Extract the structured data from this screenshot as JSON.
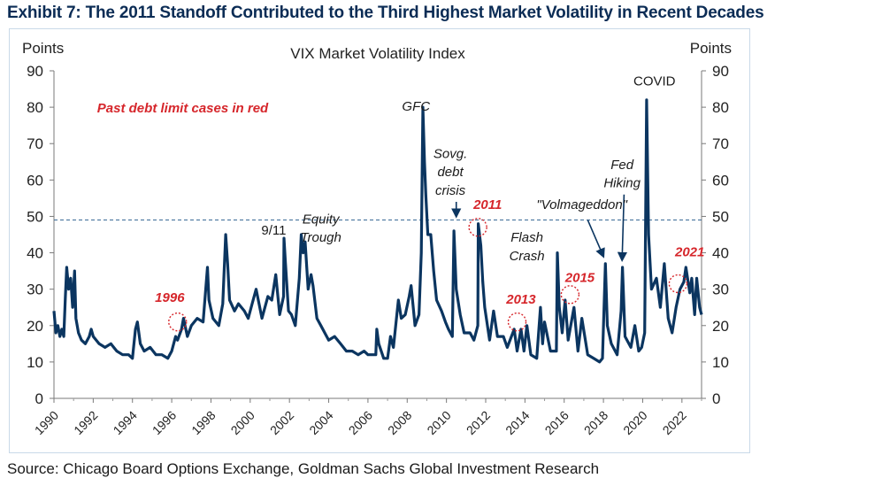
{
  "page": {
    "exhibit_title": "Exhibit 7: The 2011 Standoff Contributed to the Third Highest Market Volatility in Recent Decades",
    "source": "Source: Chicago Board Options Exchange, Goldman Sachs Global Investment Research"
  },
  "chart_data": {
    "type": "line",
    "title": "VIX  Market  Volatility Index",
    "ylabel_left": "Points",
    "ylabel_right": "Points",
    "ylim": [
      0,
      90
    ],
    "yticks": [
      0,
      10,
      20,
      30,
      40,
      50,
      60,
      70,
      80,
      90
    ],
    "xlim": [
      1990,
      2023
    ],
    "xticks": [
      "1990",
      "1992",
      "1994",
      "1996",
      "1998",
      "2000",
      "2002",
      "2004",
      "2006",
      "2008",
      "2010",
      "2012",
      "2014",
      "2016",
      "2018",
      "2020",
      "2022"
    ],
    "reference_line": {
      "y": 49,
      "style": "dashed"
    },
    "legend_note": "Past debt limit cases in red",
    "colors": {
      "series": "#0b3560",
      "highlight": "#d6262b",
      "reference": "#3a6a96",
      "axis_text": "#222222"
    },
    "series": [
      {
        "points": [
          [
            1990.0,
            24
          ],
          [
            1990.1,
            18
          ],
          [
            1990.2,
            20
          ],
          [
            1990.3,
            17
          ],
          [
            1990.4,
            19
          ],
          [
            1990.5,
            17
          ],
          [
            1990.58,
            28
          ],
          [
            1990.65,
            36
          ],
          [
            1990.75,
            30
          ],
          [
            1990.85,
            33
          ],
          [
            1990.95,
            25
          ],
          [
            1991.05,
            35
          ],
          [
            1991.12,
            22
          ],
          [
            1991.25,
            18
          ],
          [
            1991.4,
            16
          ],
          [
            1991.6,
            15
          ],
          [
            1991.8,
            17
          ],
          [
            1991.9,
            19
          ],
          [
            1992.0,
            17
          ],
          [
            1992.3,
            15
          ],
          [
            1992.6,
            14
          ],
          [
            1992.9,
            15
          ],
          [
            1993.2,
            13
          ],
          [
            1993.5,
            12
          ],
          [
            1993.8,
            12
          ],
          [
            1994.0,
            11
          ],
          [
            1994.15,
            19
          ],
          [
            1994.25,
            21
          ],
          [
            1994.4,
            15
          ],
          [
            1994.6,
            13
          ],
          [
            1994.9,
            14
          ],
          [
            1995.2,
            12
          ],
          [
            1995.5,
            12
          ],
          [
            1995.8,
            11
          ],
          [
            1996.0,
            13
          ],
          [
            1996.2,
            17
          ],
          [
            1996.3,
            16
          ],
          [
            1996.5,
            19
          ],
          [
            1996.6,
            22
          ],
          [
            1996.8,
            17
          ],
          [
            1997.0,
            20
          ],
          [
            1997.3,
            22
          ],
          [
            1997.6,
            21
          ],
          [
            1997.82,
            36
          ],
          [
            1997.9,
            27
          ],
          [
            1998.1,
            22
          ],
          [
            1998.4,
            20
          ],
          [
            1998.6,
            26
          ],
          [
            1998.75,
            45
          ],
          [
            1998.85,
            37
          ],
          [
            1998.95,
            27
          ],
          [
            1999.2,
            24
          ],
          [
            1999.4,
            26
          ],
          [
            1999.7,
            24
          ],
          [
            1999.9,
            22
          ],
          [
            2000.1,
            26
          ],
          [
            2000.3,
            30
          ],
          [
            2000.6,
            22
          ],
          [
            2000.9,
            28
          ],
          [
            2001.1,
            27
          ],
          [
            2001.3,
            34
          ],
          [
            2001.5,
            23
          ],
          [
            2001.7,
            28
          ],
          [
            2001.72,
            44
          ],
          [
            2001.8,
            37
          ],
          [
            2001.95,
            24
          ],
          [
            2002.1,
            23
          ],
          [
            2002.3,
            20
          ],
          [
            2002.5,
            33
          ],
          [
            2002.6,
            45
          ],
          [
            2002.7,
            40
          ],
          [
            2002.8,
            43
          ],
          [
            2002.95,
            30
          ],
          [
            2003.1,
            34
          ],
          [
            2003.2,
            31
          ],
          [
            2003.4,
            22
          ],
          [
            2003.6,
            20
          ],
          [
            2003.9,
            17
          ],
          [
            2004.0,
            16
          ],
          [
            2004.3,
            17
          ],
          [
            2004.6,
            15
          ],
          [
            2004.9,
            13
          ],
          [
            2005.2,
            13
          ],
          [
            2005.5,
            12
          ],
          [
            2005.8,
            13
          ],
          [
            2006.0,
            12
          ],
          [
            2006.4,
            12
          ],
          [
            2006.45,
            19
          ],
          [
            2006.55,
            15
          ],
          [
            2006.8,
            11
          ],
          [
            2007.0,
            11
          ],
          [
            2007.15,
            17
          ],
          [
            2007.3,
            14
          ],
          [
            2007.55,
            27
          ],
          [
            2007.7,
            22
          ],
          [
            2007.9,
            23
          ],
          [
            2008.1,
            28
          ],
          [
            2008.2,
            31
          ],
          [
            2008.4,
            20
          ],
          [
            2008.6,
            23
          ],
          [
            2008.72,
            40
          ],
          [
            2008.8,
            80
          ],
          [
            2008.88,
            65
          ],
          [
            2008.95,
            56
          ],
          [
            2009.05,
            45
          ],
          [
            2009.2,
            45
          ],
          [
            2009.35,
            35
          ],
          [
            2009.5,
            27
          ],
          [
            2009.75,
            24
          ],
          [
            2009.95,
            21
          ],
          [
            2010.1,
            19
          ],
          [
            2010.3,
            17
          ],
          [
            2010.38,
            46
          ],
          [
            2010.5,
            30
          ],
          [
            2010.7,
            23
          ],
          [
            2010.9,
            18
          ],
          [
            2011.2,
            18
          ],
          [
            2011.4,
            16
          ],
          [
            2011.6,
            20
          ],
          [
            2011.62,
            48
          ],
          [
            2011.75,
            42
          ],
          [
            2011.85,
            32
          ],
          [
            2011.95,
            25
          ],
          [
            2012.2,
            16
          ],
          [
            2012.4,
            24
          ],
          [
            2012.6,
            17
          ],
          [
            2012.9,
            17
          ],
          [
            2013.1,
            14
          ],
          [
            2013.45,
            19
          ],
          [
            2013.6,
            13
          ],
          [
            2013.8,
            19
          ],
          [
            2013.95,
            13
          ],
          [
            2014.1,
            20
          ],
          [
            2014.3,
            12
          ],
          [
            2014.6,
            11
          ],
          [
            2014.79,
            25
          ],
          [
            2014.9,
            15
          ],
          [
            2015.0,
            21
          ],
          [
            2015.3,
            13
          ],
          [
            2015.6,
            13
          ],
          [
            2015.65,
            40
          ],
          [
            2015.75,
            25
          ],
          [
            2015.9,
            18
          ],
          [
            2016.05,
            27
          ],
          [
            2016.2,
            16
          ],
          [
            2016.5,
            25
          ],
          [
            2016.7,
            13
          ],
          [
            2016.9,
            22
          ],
          [
            2017.2,
            12
          ],
          [
            2017.5,
            11
          ],
          [
            2017.8,
            10
          ],
          [
            2017.95,
            11
          ],
          [
            2018.1,
            37
          ],
          [
            2018.2,
            20
          ],
          [
            2018.4,
            15
          ],
          [
            2018.7,
            12
          ],
          [
            2018.9,
            24
          ],
          [
            2018.97,
            36
          ],
          [
            2019.1,
            17
          ],
          [
            2019.4,
            14
          ],
          [
            2019.6,
            20
          ],
          [
            2019.8,
            13
          ],
          [
            2019.95,
            14
          ],
          [
            2020.1,
            18
          ],
          [
            2020.2,
            82
          ],
          [
            2020.3,
            45
          ],
          [
            2020.45,
            30
          ],
          [
            2020.7,
            33
          ],
          [
            2020.9,
            25
          ],
          [
            2021.1,
            37
          ],
          [
            2021.3,
            22
          ],
          [
            2021.5,
            18
          ],
          [
            2021.7,
            25
          ],
          [
            2021.9,
            30
          ],
          [
            2022.1,
            32
          ],
          [
            2022.2,
            36
          ],
          [
            2022.4,
            29
          ],
          [
            2022.5,
            33
          ],
          [
            2022.65,
            23
          ],
          [
            2022.75,
            33
          ],
          [
            2022.9,
            25
          ],
          [
            2023.0,
            23
          ]
        ]
      }
    ],
    "annotations": [
      {
        "text": "GFC",
        "x": 2008.45,
        "y": 79,
        "color": "dark",
        "italic": true
      },
      {
        "text": "9/11",
        "x": 2001.2,
        "y": 45,
        "color": "dark",
        "italic": false
      },
      {
        "text": "Equity",
        "x": 2003.6,
        "y": 48,
        "color": "dark",
        "italic": true
      },
      {
        "text": "Trough",
        "x": 2003.6,
        "y": 43,
        "color": "dark",
        "italic": true
      },
      {
        "text": "Sovg.",
        "x": 2010.2,
        "y": 66,
        "color": "dark",
        "italic": true
      },
      {
        "text": "debt",
        "x": 2010.2,
        "y": 61,
        "color": "dark",
        "italic": true
      },
      {
        "text": "crisis",
        "x": 2010.2,
        "y": 56,
        "color": "dark",
        "italic": true
      },
      {
        "text": "Flash",
        "x": 2014.1,
        "y": 43,
        "color": "dark",
        "italic": true
      },
      {
        "text": "Crash",
        "x": 2014.1,
        "y": 38,
        "color": "dark",
        "italic": true
      },
      {
        "text": "\"Volmageddon\"",
        "x": 2016.9,
        "y": 52,
        "color": "dark",
        "italic": true
      },
      {
        "text": "Fed",
        "x": 2018.95,
        "y": 63,
        "color": "dark",
        "italic": true
      },
      {
        "text": "Hiking",
        "x": 2018.95,
        "y": 58,
        "color": "dark",
        "italic": true
      },
      {
        "text": "COVID",
        "x": 2020.6,
        "y": 86,
        "color": "dark",
        "italic": false
      },
      {
        "text": "1996",
        "x": 1995.9,
        "y": 26.5,
        "color": "red",
        "italic": true
      },
      {
        "text": "2011",
        "x": 2012.1,
        "y": 52,
        "color": "red",
        "italic": true
      },
      {
        "text": "2013",
        "x": 2013.8,
        "y": 26,
        "color": "red",
        "italic": true
      },
      {
        "text": "2015",
        "x": 2016.8,
        "y": 32,
        "color": "red",
        "italic": true
      },
      {
        "text": "2021",
        "x": 2022.4,
        "y": 39,
        "color": "red",
        "italic": true
      }
    ],
    "highlight_circles": [
      {
        "x": 1996.3,
        "y": 21
      },
      {
        "x": 2011.6,
        "y": 47
      },
      {
        "x": 2013.6,
        "y": 21
      },
      {
        "x": 2016.3,
        "y": 28.5
      },
      {
        "x": 2021.8,
        "y": 31.5
      }
    ],
    "arrows": [
      {
        "from": [
          2010.5,
          54
        ],
        "to": [
          2010.5,
          50
        ]
      },
      {
        "from": [
          2017.2,
          49
        ],
        "to": [
          2018.0,
          39
        ]
      },
      {
        "from": [
          2019.05,
          56
        ],
        "to": [
          2018.95,
          38
        ]
      }
    ]
  }
}
